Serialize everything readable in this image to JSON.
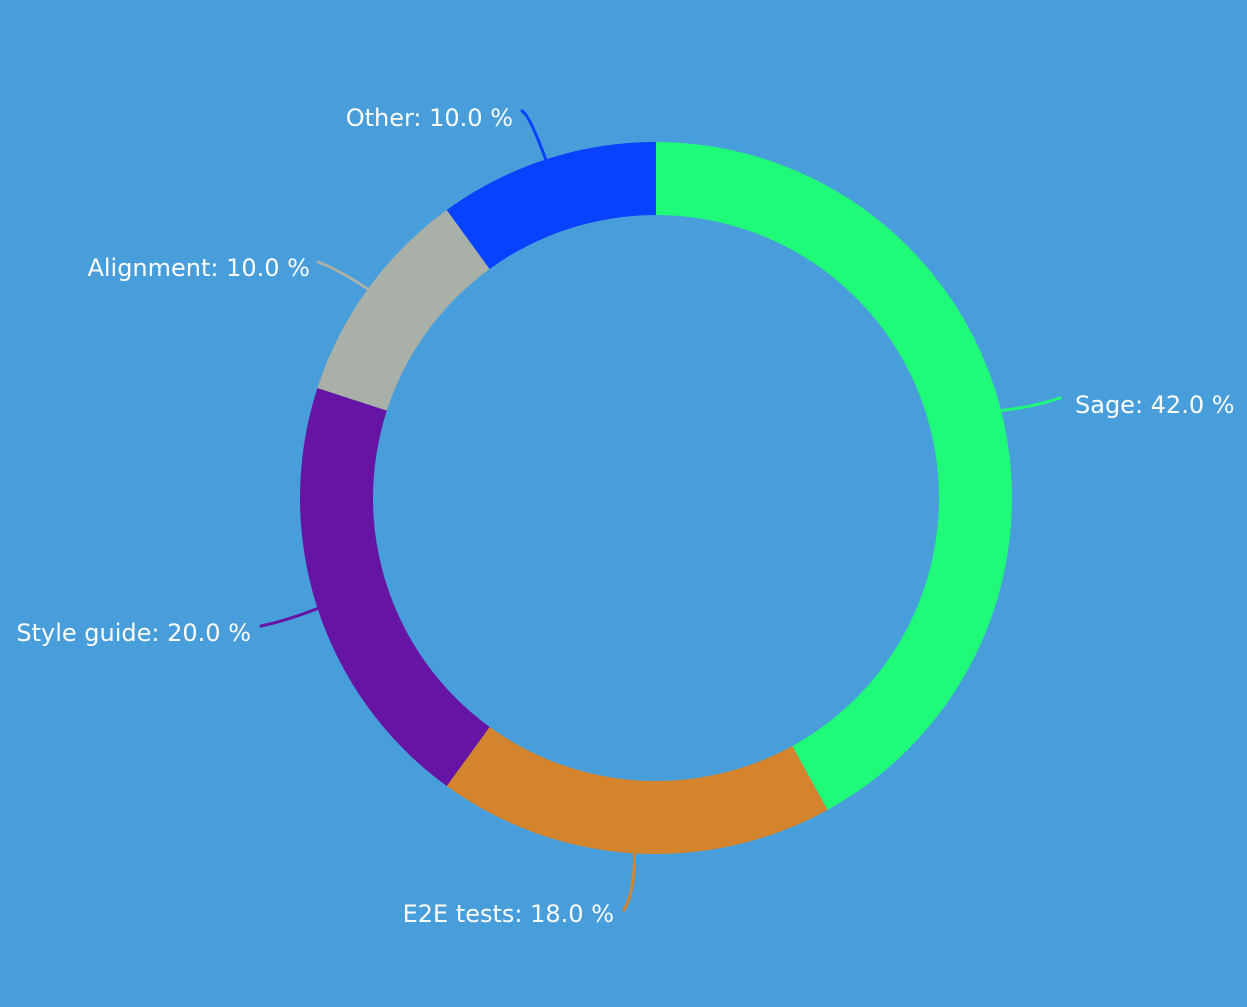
{
  "chart_data": {
    "type": "pie",
    "variant": "donut",
    "title": "",
    "slices": [
      {
        "name": "Sage",
        "value": 42.0,
        "label": "Sage: 42.0 %",
        "color": "#1FFA78"
      },
      {
        "name": "E2E tests",
        "value": 18.0,
        "label": "E2E tests: 18.0 %",
        "color": "#D4842C"
      },
      {
        "name": "Style guide",
        "value": 20.0,
        "label": "Style guide: 20.0 %",
        "color": "#6614A4"
      },
      {
        "name": "Alignment",
        "value": 10.0,
        "label": "Alignment: 10.0 %",
        "color": "#A8B0A8"
      },
      {
        "name": "Other",
        "value": 10.0,
        "label": "Other: 10.0 %",
        "color": "#0841FF"
      }
    ],
    "start_angle": "12 o'clock",
    "direction": "clockwise",
    "legend": "none"
  },
  "colors": {
    "background": "#489DDB",
    "label_text": "#FFFFFF"
  }
}
